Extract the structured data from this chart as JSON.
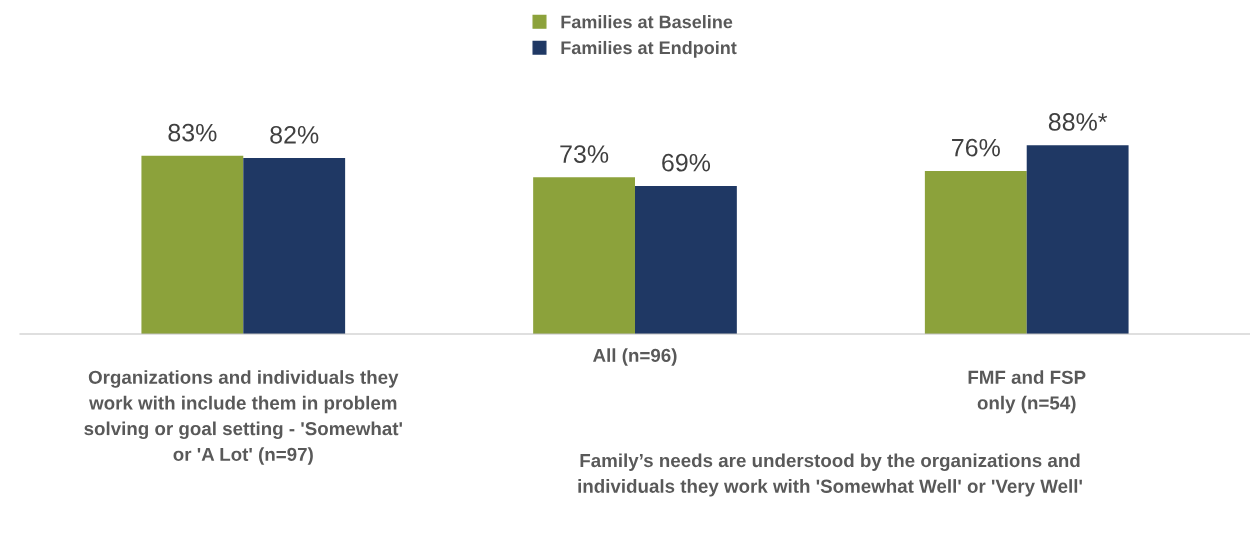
{
  "chart_data": {
    "type": "bar",
    "categories": [
      "Organizations and individuals they\nwork with include them in problem\nsolving or goal setting - 'Somewhat'\nor 'A Lot' (n=97)",
      "All (n=96)",
      "FMF and FSP\nonly (n=54)"
    ],
    "series": [
      {
        "name": "Families at Baseline",
        "color": "#8ca23b",
        "values": [
          83,
          73,
          76
        ],
        "value_labels": [
          "83%",
          "73%",
          "76%"
        ]
      },
      {
        "name": "Families at Endpoint",
        "color": "#1f3864",
        "values": [
          82,
          69,
          88
        ],
        "value_labels": [
          "82%",
          "69%",
          "88%*"
        ]
      }
    ],
    "annotations": [
      "Family’s needs are understood by the organizations and\nindividuals they work with 'Somewhat Well' or 'Very Well'"
    ],
    "legend": "top"
  }
}
